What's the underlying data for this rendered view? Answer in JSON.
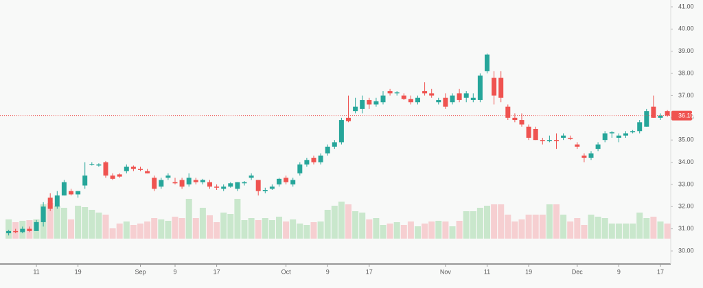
{
  "chart_data": {
    "type": "candlestick",
    "up_color": "#26a69a",
    "down_color": "#ef5350",
    "up_volume_color": "#c9e7cc",
    "down_volume_color": "#f6cfd1",
    "categories": [
      null,
      null,
      null,
      null,
      "11",
      null,
      null,
      null,
      null,
      null,
      "19",
      null,
      null,
      null,
      null,
      null,
      null,
      null,
      null,
      "Sep",
      null,
      null,
      null,
      null,
      "9",
      null,
      null,
      null,
      null,
      null,
      "17",
      null,
      null,
      null,
      null,
      null,
      null,
      null,
      null,
      null,
      "Oct",
      null,
      null,
      null,
      null,
      null,
      "9",
      null,
      null,
      null,
      null,
      null,
      "17",
      null,
      null,
      null,
      null,
      null,
      null,
      null,
      null,
      null,
      null,
      "Nov",
      null,
      null,
      null,
      null,
      null,
      "11",
      null,
      null,
      null,
      null,
      null,
      "19",
      null,
      null,
      null,
      null,
      null,
      null,
      "Dec",
      null,
      null,
      null,
      null,
      null,
      "9",
      null,
      null,
      null,
      null,
      null,
      "17",
      null
    ],
    "open": [
      30.8,
      30.9,
      30.85,
      31.0,
      30.9,
      31.3,
      32.4,
      32.0,
      32.5,
      32.7,
      32.55,
      32.95,
      33.9,
      33.85,
      34.0,
      33.4,
      33.45,
      33.6,
      33.8,
      33.7,
      33.6,
      33.3,
      32.9,
      33.3,
      33.1,
      33.2,
      33.0,
      33.2,
      33.1,
      33.1,
      32.9,
      32.8,
      32.9,
      32.8,
      33.05,
      33.3,
      33.2,
      32.7,
      32.8,
      33.0,
      33.3,
      33.0,
      33.5,
      33.9,
      34.2,
      34.0,
      34.4,
      34.7,
      34.9,
      36.0,
      36.3,
      36.4,
      36.8,
      36.6,
      36.7,
      37.2,
      37.1,
      37.0,
      36.85,
      36.7,
      37.2,
      37.1,
      36.7,
      36.9,
      36.7,
      37.1,
      36.9,
      36.8,
      36.8,
      38.1,
      37.8,
      37.8,
      36.5,
      36.0,
      35.9,
      35.6,
      35.5,
      35.0,
      34.95,
      35.0,
      35.1,
      35.1,
      34.8,
      34.3,
      34.2,
      34.6,
      35.0,
      35.3,
      35.1,
      35.2,
      35.35,
      35.4,
      35.6,
      36.5,
      36.0,
      36.3
    ],
    "high": [
      30.95,
      31.0,
      31.1,
      31.1,
      31.4,
      32.2,
      32.6,
      32.7,
      33.2,
      32.8,
      32.7,
      34.0,
      34.0,
      33.95,
      34.05,
      33.5,
      33.5,
      33.9,
      33.85,
      33.8,
      33.7,
      33.4,
      33.3,
      33.5,
      33.3,
      33.3,
      33.5,
      33.3,
      33.25,
      33.2,
      33.0,
      33.0,
      33.1,
      33.1,
      33.15,
      33.5,
      33.2,
      32.85,
      33.0,
      33.3,
      33.4,
      33.3,
      34.0,
      34.2,
      34.3,
      34.4,
      34.8,
      35.0,
      36.0,
      37.0,
      36.9,
      37.0,
      36.9,
      36.9,
      37.2,
      37.3,
      37.2,
      37.1,
      37.0,
      37.0,
      37.6,
      37.3,
      36.9,
      37.1,
      37.1,
      37.3,
      37.2,
      37.1,
      38.0,
      38.9,
      38.1,
      38.1,
      36.6,
      36.2,
      36.2,
      35.7,
      35.6,
      35.1,
      35.2,
      35.3,
      35.3,
      35.2,
      34.9,
      34.4,
      34.5,
      34.9,
      35.4,
      35.4,
      35.3,
      35.4,
      35.45,
      35.9,
      36.4,
      37.0,
      36.2,
      36.35
    ],
    "low": [
      30.7,
      30.8,
      30.8,
      30.85,
      30.9,
      31.1,
      31.8,
      31.9,
      32.5,
      32.5,
      32.4,
      32.8,
      33.85,
      33.8,
      33.3,
      33.2,
      33.3,
      33.5,
      33.6,
      33.6,
      33.5,
      32.7,
      32.8,
      33.2,
      33.0,
      32.8,
      32.9,
      33.0,
      33.0,
      32.8,
      32.75,
      32.7,
      32.85,
      32.7,
      32.95,
      33.2,
      32.5,
      32.6,
      32.75,
      32.9,
      33.0,
      32.9,
      33.4,
      33.8,
      33.9,
      33.9,
      34.3,
      34.6,
      34.8,
      35.8,
      36.2,
      36.2,
      36.4,
      36.5,
      36.6,
      37.0,
      37.0,
      36.8,
      36.6,
      36.6,
      37.0,
      36.9,
      36.6,
      36.4,
      36.6,
      36.7,
      36.7,
      36.7,
      36.7,
      38.0,
      36.6,
      36.7,
      35.9,
      35.8,
      35.6,
      35.0,
      35.0,
      34.8,
      34.9,
      34.6,
      35.0,
      35.0,
      34.6,
      34.0,
      34.1,
      34.5,
      34.9,
      35.1,
      34.9,
      35.1,
      35.3,
      35.3,
      35.6,
      36.0,
      35.9,
      36.05
    ],
    "close": [
      30.9,
      30.85,
      31.0,
      30.9,
      31.3,
      32.0,
      31.9,
      32.5,
      33.1,
      32.55,
      32.7,
      33.4,
      33.92,
      33.9,
      33.4,
      33.25,
      33.35,
      33.8,
      33.7,
      33.65,
      33.5,
      32.8,
      33.2,
      33.4,
      33.05,
      32.9,
      33.3,
      33.1,
      33.2,
      32.9,
      32.85,
      32.9,
      33.05,
      33.1,
      33.1,
      33.4,
      32.7,
      32.75,
      32.9,
      33.25,
      33.1,
      33.2,
      33.9,
      34.1,
      34.0,
      34.3,
      34.7,
      34.9,
      35.9,
      35.85,
      36.5,
      36.8,
      36.6,
      36.75,
      37.0,
      37.1,
      37.15,
      36.85,
      36.7,
      36.9,
      37.1,
      37.0,
      36.8,
      36.5,
      37.0,
      36.8,
      37.1,
      36.9,
      37.9,
      38.85,
      37.0,
      36.9,
      36.0,
      35.9,
      35.7,
      35.1,
      35.0,
      34.95,
      35.0,
      34.95,
      35.2,
      35.05,
      34.7,
      34.2,
      34.4,
      34.8,
      35.3,
      35.35,
      35.2,
      35.3,
      35.4,
      35.8,
      36.3,
      36.0,
      36.1,
      36.1
    ],
    "volume": [
      28,
      24,
      26,
      27,
      28,
      50,
      52,
      48,
      45,
      28,
      48,
      46,
      42,
      38,
      35,
      15,
      22,
      25,
      20,
      22,
      25,
      30,
      28,
      26,
      32,
      30,
      58,
      30,
      45,
      34,
      24,
      38,
      36,
      58,
      27,
      30,
      27,
      30,
      27,
      32,
      25,
      28,
      22,
      20,
      24,
      25,
      42,
      48,
      54,
      50,
      40,
      38,
      28,
      30,
      20,
      22,
      24,
      20,
      25,
      18,
      22,
      25,
      26,
      25,
      18,
      26,
      40,
      40,
      45,
      48,
      50,
      50,
      35,
      25,
      28,
      35,
      35,
      35,
      50,
      50,
      35,
      25,
      30,
      20,
      35,
      32,
      30,
      22,
      22,
      22,
      22,
      38,
      30,
      32,
      25,
      22
    ],
    "ylim": [
      30,
      41
    ],
    "yticks": [
      {
        "value": 30,
        "label": "30.00"
      },
      {
        "value": 31,
        "label": "31.00"
      },
      {
        "value": 32,
        "label": "32.00"
      },
      {
        "value": 33,
        "label": "33.00"
      },
      {
        "value": 34,
        "label": "34.00"
      },
      {
        "value": 35,
        "label": "35.00"
      },
      {
        "value": 36,
        "label": "36.00"
      },
      {
        "value": 37,
        "label": "37.00"
      },
      {
        "value": 38,
        "label": "38.00"
      },
      {
        "value": 39,
        "label": "39.00"
      },
      {
        "value": 40,
        "label": "40.00"
      },
      {
        "value": 41,
        "label": "41.00"
      }
    ],
    "last_price": {
      "value": 36.1,
      "label": "36.10"
    }
  }
}
